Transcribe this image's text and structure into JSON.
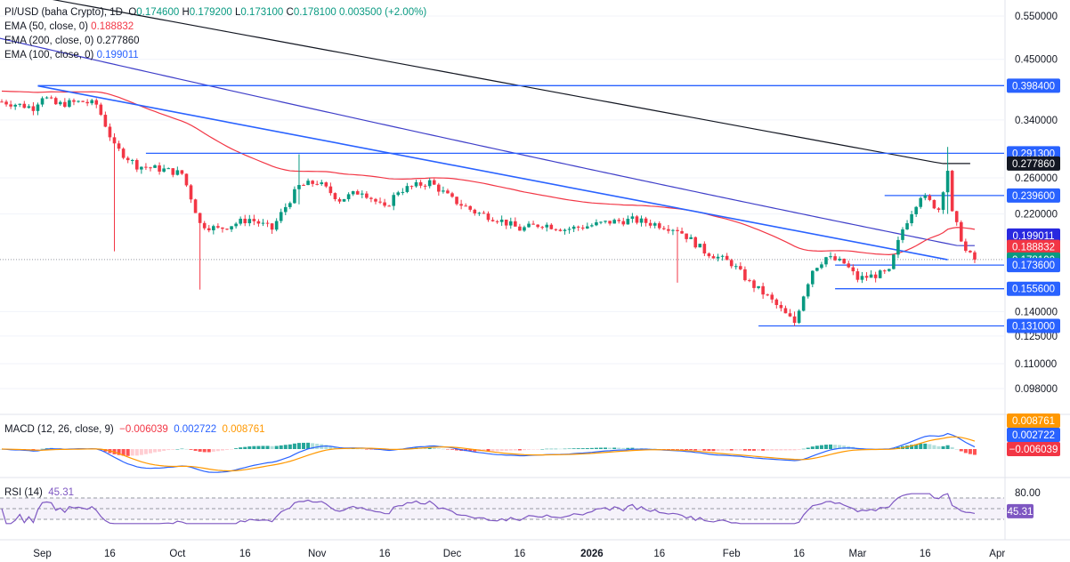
{
  "legend": {
    "symbol": "PI/USD (baha Crypto), 1D",
    "o_label": "O",
    "o": "0.174600",
    "h_label": "H",
    "h": "0.179200",
    "l_label": "L",
    "l": "0.173100",
    "c_label": "C",
    "c": "0.178100",
    "change": "0.003500 (+2.00%)",
    "ema50_label": "EMA (50, close, 0)",
    "ema50": "0.188832",
    "ema200_label": "EMA (200, close, 0)",
    "ema200": "0.277860",
    "ema100_label": "EMA (100, close, 0)",
    "ema100": "0.199011",
    "macd_label": "MACD (12, 26, close, 9)",
    "macd_hist": "−0.006039",
    "macd_line": "0.002722",
    "macd_signal": "0.008761",
    "rsi_label": "RSI (14)",
    "rsi": "45.31"
  },
  "colors": {
    "up": "#089981",
    "down": "#f23645",
    "ema50": "#f23645",
    "ema100": "#3f3fc9",
    "ema200": "#131722",
    "level": "#2962ff",
    "macd": "#2962ff",
    "signal": "#ff9800",
    "rsi": "#7e57c2"
  },
  "chart_data": {
    "type": "candlestick",
    "price_axis": [
      "0.550000",
      "0.450000",
      "0.340000",
      "0.260000",
      "0.220000",
      "0.140000",
      "0.125000",
      "0.110000",
      "0.098000"
    ],
    "time_axis": [
      "Sep",
      "16",
      "Oct",
      "16",
      "Nov",
      "16",
      "Dec",
      "16",
      "2026",
      "16",
      "Feb",
      "16",
      "Mar",
      "16",
      "Apr"
    ],
    "levels": [
      {
        "value": "0.398400",
        "start": "Aug 31"
      },
      {
        "value": "0.291300",
        "start": "Sep 24"
      },
      {
        "value": "0.239600",
        "start": "Mar 7"
      },
      {
        "value": "0.173600",
        "start": "Feb 24"
      },
      {
        "value": "0.155600",
        "start": "Feb 24"
      },
      {
        "value": "0.131000",
        "start": "Feb 7"
      }
    ],
    "price_tags": [
      {
        "value": "0.398400",
        "kind": "level"
      },
      {
        "value": "0.291300",
        "kind": "level"
      },
      {
        "value": "0.277860",
        "kind": "ema200"
      },
      {
        "value": "0.239600",
        "kind": "level"
      },
      {
        "value": "0.199011",
        "kind": "ema100"
      },
      {
        "value": "0.188832",
        "kind": "ema50"
      },
      {
        "value": "0.178100",
        "kind": "last"
      },
      {
        "value": "0.173600",
        "kind": "level"
      },
      {
        "value": "0.155600",
        "kind": "level"
      },
      {
        "value": "0.131000",
        "kind": "level"
      }
    ],
    "trendline": {
      "from": {
        "date": "Aug 31",
        "value": 0.398
      },
      "to": {
        "date": "Mar 21",
        "value": 0.178
      }
    },
    "macd_axis_tags": [
      "0.008761",
      "0.002722",
      "−0.006039"
    ],
    "rsi_axis": [
      "80.00"
    ],
    "rsi_tag": "45.31",
    "rsi_band": [
      30,
      70
    ]
  }
}
